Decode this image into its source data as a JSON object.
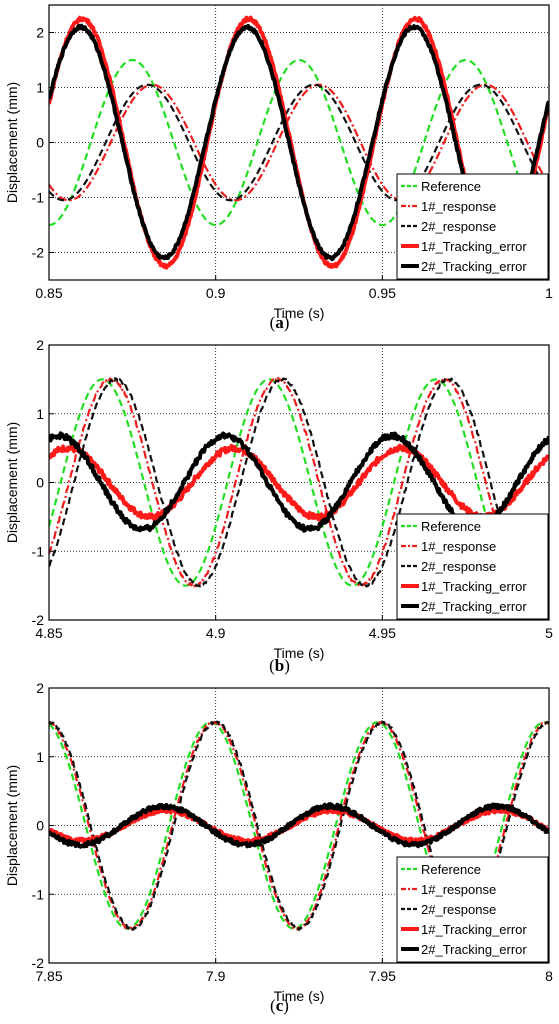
{
  "colors": {
    "reference": "#22dd22",
    "response_1": "#ee1c1c",
    "response_2": "#111111",
    "error_1": "#ff1a1a",
    "error_2": "#000000",
    "grid": "#000000"
  },
  "legend_labels": [
    "Reference",
    "1#_response",
    "2#_response",
    "1#_Tracking_error",
    "2#_Tracking_error"
  ],
  "chart_data": [
    {
      "type": "line",
      "caption": "a",
      "xlabel": "Time (s)",
      "ylabel": "Displacement (mm)",
      "xlim": [
        0.85,
        1.0
      ],
      "ylim": [
        -2.5,
        2.5
      ],
      "xticks": [
        0.85,
        0.9,
        0.95,
        1.0
      ],
      "xtick_labels": [
        "0.85",
        "0.9",
        "0.95",
        "1"
      ],
      "yticks": [
        -2,
        -1,
        0,
        1,
        2
      ],
      "ytick_labels": [
        "-2",
        "-1",
        "0",
        "1",
        "2"
      ],
      "grid": true,
      "legend_position": "bottom-right",
      "series": [
        {
          "name": "Reference",
          "style": "dashed",
          "freq": 20,
          "amp": 1.5,
          "zero_up": 0.8625,
          "noise": 0.0
        },
        {
          "name": "1#_response",
          "style": "dashdot",
          "freq": 20,
          "amp": 1.05,
          "zero_up": 0.8685,
          "noise": 0.0
        },
        {
          "name": "2#_response",
          "style": "dashed",
          "freq": 20,
          "amp": 1.05,
          "zero_up": 0.867,
          "noise": 0.0
        },
        {
          "name": "1#_Tracking_error",
          "style": "solid-thick",
          "freq": 20,
          "amp": 2.25,
          "zero_up": 0.8475,
          "noise": 0.03
        },
        {
          "name": "2#_Tracking_error",
          "style": "solid-thick",
          "freq": 20,
          "amp": 2.1,
          "zero_up": 0.847,
          "noise": 0.03
        }
      ]
    },
    {
      "type": "line",
      "caption": "b",
      "xlabel": "Time (s)",
      "ylabel": "Displacement (mm)",
      "xlim": [
        4.85,
        5.0
      ],
      "ylim": [
        -2,
        2
      ],
      "xticks": [
        4.85,
        4.9,
        4.95,
        5.0
      ],
      "xtick_labels": [
        "4.85",
        "4.9",
        "4.95",
        "5"
      ],
      "yticks": [
        -2,
        -1,
        0,
        1,
        2
      ],
      "ytick_labels": [
        "-2",
        "-1",
        "0",
        "1",
        "2"
      ],
      "grid": true,
      "legend_position": "bottom-right",
      "series": [
        {
          "name": "Reference",
          "style": "dashed",
          "freq": 20,
          "amp": 1.5,
          "zero_up": 4.8535,
          "noise": 0.0
        },
        {
          "name": "1#_response",
          "style": "dashdot",
          "freq": 20,
          "amp": 1.5,
          "zero_up": 4.856,
          "noise": 0.02
        },
        {
          "name": "2#_response",
          "style": "dashed",
          "freq": 20,
          "amp": 1.5,
          "zero_up": 4.8575,
          "noise": 0.02
        },
        {
          "name": "1#_Tracking_error",
          "style": "solid-thick",
          "freq": 20,
          "amp": 0.5,
          "zero_up": 4.893,
          "noise": 0.04
        },
        {
          "name": "2#_Tracking_error",
          "style": "solid-thick",
          "freq": 20,
          "amp": 0.68,
          "zero_up": 4.8905,
          "noise": 0.04
        }
      ]
    },
    {
      "type": "line",
      "caption": "c",
      "xlabel": "Time (s)",
      "ylabel": "Displacement (mm)",
      "xlim": [
        7.85,
        8.0
      ],
      "ylim": [
        -2,
        2
      ],
      "xticks": [
        7.85,
        7.9,
        7.95,
        8.0
      ],
      "xtick_labels": [
        "7.85",
        "7.9",
        "7.95",
        "8"
      ],
      "yticks": [
        -2,
        -1,
        0,
        1,
        2
      ],
      "ytick_labels": [
        "-2",
        "-1",
        "0",
        "1",
        "2"
      ],
      "grid": true,
      "legend_position": "bottom-right",
      "series": [
        {
          "name": "Reference",
          "style": "dashed",
          "freq": 20,
          "amp": 1.5,
          "zero_up": 7.886,
          "noise": 0.0
        },
        {
          "name": "1#_response",
          "style": "dashdot",
          "freq": 20,
          "amp": 1.5,
          "zero_up": 7.887,
          "noise": 0.02
        },
        {
          "name": "2#_response",
          "style": "dashed",
          "freq": 20,
          "amp": 1.5,
          "zero_up": 7.8875,
          "noise": 0.02
        },
        {
          "name": "1#_Tracking_error",
          "style": "solid-thick",
          "freq": 20,
          "amp": 0.22,
          "zero_up": 7.8725,
          "noise": 0.03
        },
        {
          "name": "2#_Tracking_error",
          "style": "solid-thick",
          "freq": 20,
          "amp": 0.28,
          "zero_up": 7.872,
          "noise": 0.03
        }
      ]
    }
  ]
}
